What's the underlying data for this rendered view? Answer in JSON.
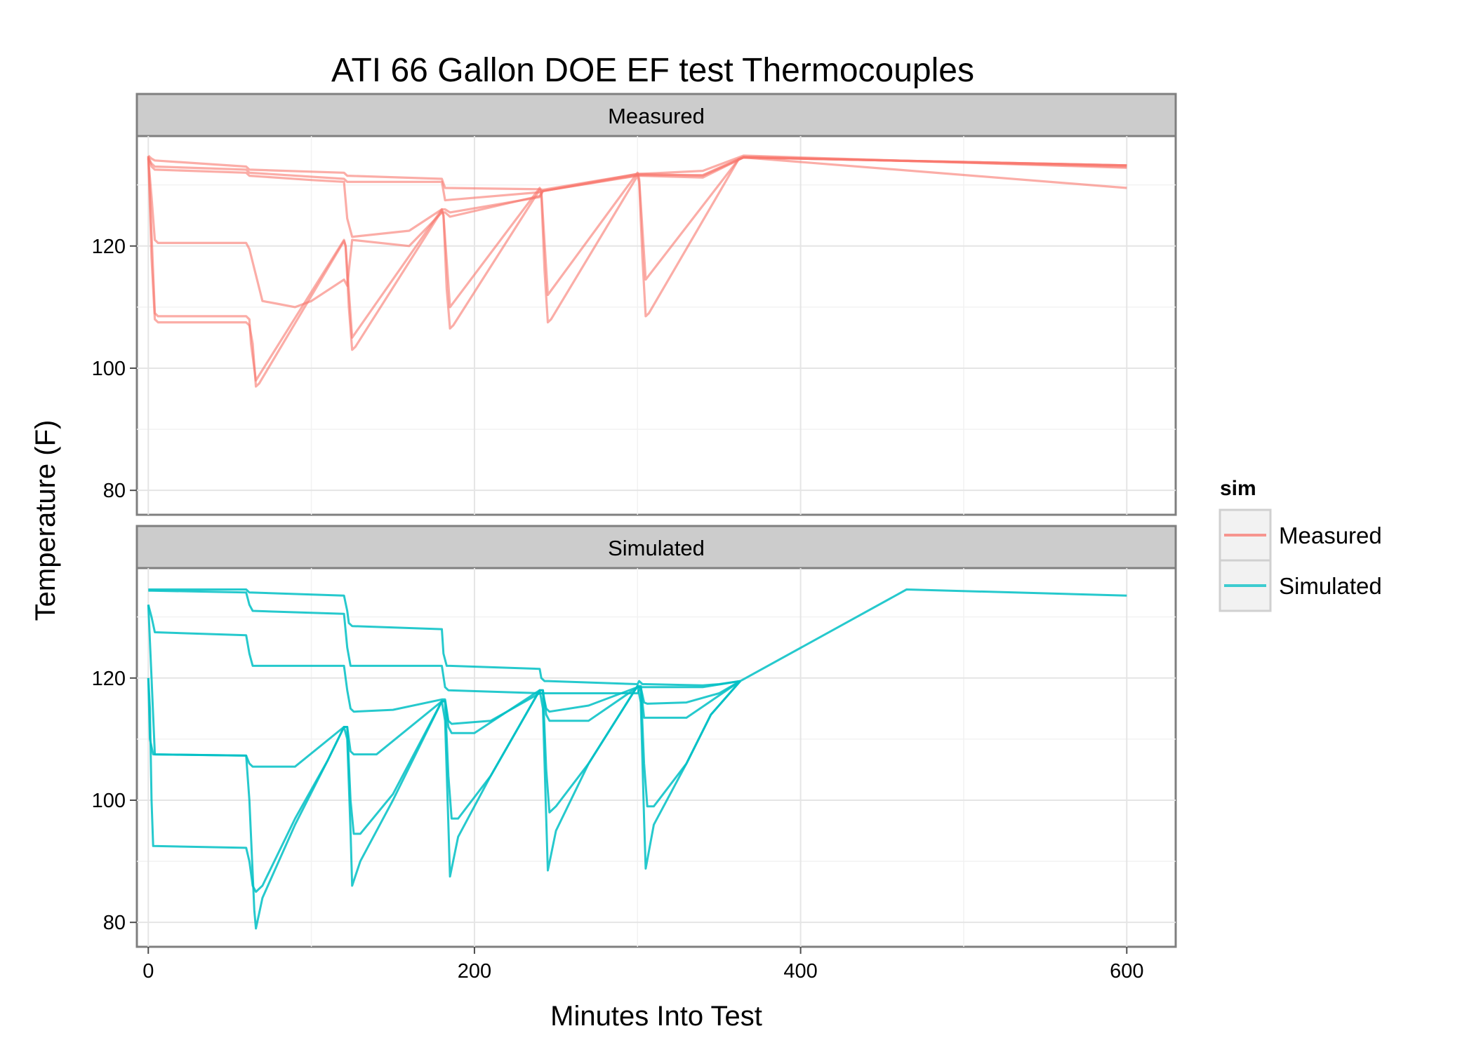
{
  "chart_data": {
    "type": "line",
    "title": "ATI 66 Gallon DOE EF test Thermocouples",
    "xlabel": "Minutes Into Test",
    "ylabel": "Temperature (F)",
    "xlim": [
      -7,
      630
    ],
    "ylim": [
      76,
      138
    ],
    "x_ticks": [
      "0",
      "200",
      "400",
      "600"
    ],
    "y_ticks": [
      "80",
      "100",
      "120"
    ],
    "x_tick_values": [
      0,
      200,
      400,
      600
    ],
    "y_tick_values": [
      80,
      100,
      120
    ],
    "grid": true,
    "colors": {
      "Measured": "#F8766D",
      "Simulated": "#00BFC4"
    },
    "legend": {
      "title": "sim",
      "position": "right",
      "entries": [
        "Measured",
        "Simulated"
      ]
    },
    "panels": [
      {
        "label": "Measured",
        "series": [
          {
            "x": [
              0,
              2,
              4,
              60,
              62,
              120,
              122,
              180,
              182,
              240,
              242,
              300,
              302,
              340,
              365,
              600
            ],
            "y": [
              134.8,
              134.3,
              134,
              133,
              132.5,
              132,
              131.5,
              131,
              129.5,
              129.3,
              129.2,
              131.8,
              131.8,
              132.3,
              134.8,
              132.8
            ]
          },
          {
            "x": [
              0,
              2,
              4,
              60,
              62,
              120,
              122,
              180,
              182,
              240,
              242,
              300,
              302,
              340,
              365,
              600
            ],
            "y": [
              134.5,
              133.5,
              133,
              132.5,
              132,
              131,
              130.5,
              130.5,
              127.5,
              128.8,
              129,
              131.5,
              131.5,
              131.2,
              134.5,
              129.5
            ]
          },
          {
            "x": [
              0,
              2,
              4,
              60,
              62,
              100,
              120,
              122,
              125,
              160,
              180,
              182,
              185,
              240,
              242,
              300,
              302,
              340,
              365,
              600
            ],
            "y": [
              134.5,
              133,
              132.5,
              132,
              131.5,
              130.8,
              130.5,
              124.5,
              121.5,
              122.5,
              126,
              126,
              125.5,
              128,
              129,
              131.8,
              131.8,
              131.5,
              134.5,
              133.2
            ]
          },
          {
            "x": [
              0,
              2,
              4,
              6,
              60,
              62,
              70,
              80,
              90,
              100,
              120,
              122,
              125,
              160,
              180,
              182,
              185,
              240,
              242,
              300,
              302,
              340,
              365,
              600
            ],
            "y": [
              134.3,
              128,
              121,
              120.5,
              120.5,
              119.5,
              111,
              110.5,
              110,
              111,
              114.5,
              113.5,
              121,
              120,
              125.5,
              125.5,
              124.8,
              128.2,
              129,
              131.6,
              131.6,
              131.6,
              134.6,
              133
            ]
          },
          {
            "x": [
              0,
              2,
              4,
              6,
              60,
              62,
              63,
              66,
              120,
              121,
              125,
              180,
              181,
              185,
              240,
              241,
              245,
              300,
              301,
              305,
              362,
              365,
              600
            ],
            "y": [
              134.7,
              122,
              109,
              108.5,
              108.5,
              108,
              104,
              98,
              121,
              120,
              105,
              126,
              125,
              110,
              129.5,
              129,
              112,
              132,
              131,
              114.5,
              134.2,
              134.5,
              133.2
            ]
          },
          {
            "x": [
              0,
              2,
              4,
              6,
              60,
              62,
              64,
              66,
              68,
              120,
              121,
              123,
              125,
              127,
              180,
              181,
              183,
              185,
              187,
              240,
              241,
              243,
              245,
              247,
              300,
              301,
              303,
              305,
              307,
              362,
              365,
              600
            ],
            "y": [
              134.7,
              118,
              108,
              107.5,
              107.5,
              107,
              104,
              97,
              97.5,
              120.8,
              120,
              110,
              103,
              103.5,
              125.8,
              125,
              113,
              106.5,
              107,
              129.2,
              128.5,
              116,
              107.5,
              108,
              131.5,
              130.5,
              118,
              108.5,
              109,
              134.2,
              134.5,
              133.2
            ]
          }
        ]
      },
      {
        "label": "Simulated",
        "series": [
          {
            "x": [
              0,
              2,
              60,
              62,
              120,
              122,
              123,
              125,
              180,
              181,
              183,
              185,
              240,
              241,
              243,
              245,
              300,
              301,
              303,
              305,
              340,
              350,
              363,
              465,
              600
            ],
            "y": [
              134.5,
              134.5,
              134.5,
              134,
              133.5,
              131,
              129,
              128.5,
              128,
              124,
              122,
              122,
              121.5,
              120,
              119.5,
              119.5,
              119,
              119.5,
              119,
              119,
              118.8,
              119,
              119.5,
              134.5,
              133.5
            ]
          },
          {
            "x": [
              0,
              2,
              60,
              62,
              64,
              120,
              122,
              124,
              180,
              182,
              184,
              240,
              242,
              244,
              300,
              302,
              304,
              340,
              363
            ],
            "y": [
              134.3,
              134.3,
              134,
              132,
              131,
              130.5,
              125,
              122,
              122,
              118.5,
              118,
              117.5,
              117.5,
              117.5,
              117.5,
              118.5,
              118.5,
              118.5,
              119.5
            ]
          },
          {
            "x": [
              0,
              2,
              4,
              60,
              62,
              64,
              120,
              122,
              124,
              126,
              150,
              180,
              182,
              184,
              186,
              210,
              240,
              242,
              244,
              246,
              270,
              300,
              302,
              304,
              306,
              330,
              350,
              363
            ],
            "y": [
              132,
              130,
              127.5,
              127,
              124,
              122,
              122,
              118,
              115,
              114.5,
              114.8,
              116.5,
              116.5,
              113,
              112.5,
              113,
              117.5,
              117.5,
              115,
              114.5,
              115.5,
              118.5,
              118.5,
              116,
              115.8,
              116,
              117.5,
              119.5
            ]
          },
          {
            "x": [
              0,
              2,
              4,
              60,
              62,
              64,
              90,
              120,
              122,
              124,
              126,
              140,
              180,
              182,
              184,
              186,
              200,
              240,
              242,
              244,
              246,
              270,
              300,
              302,
              304,
              306,
              330,
              363
            ],
            "y": [
              132,
              120,
              107.5,
              107.3,
              106,
              105.5,
              105.5,
              112,
              112,
              108,
              107.5,
              107.5,
              116.2,
              116.2,
              112,
              111,
              111,
              118,
              118,
              114,
              113,
              113,
              118.5,
              118.5,
              113.5,
              113.5,
              113.5,
              119.5
            ]
          },
          {
            "x": [
              0,
              1,
              2,
              3,
              60,
              62,
              64,
              66,
              70,
              90,
              110,
              120,
              122,
              124,
              126,
              130,
              150,
              180,
              182,
              184,
              186,
              190,
              210,
              240,
              242,
              244,
              246,
              250,
              270,
              300,
              302,
              304,
              306,
              310,
              330,
              345,
              363
            ],
            "y": [
              120,
              115,
              100,
              92.5,
              92.2,
              90,
              86,
              85,
              86,
              97,
              106.5,
              112,
              112,
              100,
              94.5,
              94.5,
              101,
              116.2,
              116.2,
              104,
              97,
              97,
              104,
              118,
              118,
              105,
              98,
              99,
              106,
              118.7,
              118.7,
              106,
              99,
              99,
              106,
              114,
              119.5
            ]
          },
          {
            "x": [
              0,
              1,
              3,
              60,
              62,
              64,
              65,
              66,
              70,
              90,
              110,
              120,
              122,
              124,
              125,
              130,
              150,
              180,
              182,
              184,
              185,
              190,
              210,
              240,
              242,
              244,
              245,
              250,
              270,
              300,
              302,
              304,
              305,
              310,
              330,
              345,
              363
            ],
            "y": [
              120,
              110,
              107.5,
              107.3,
              100,
              88,
              82,
              79,
              84,
              96,
              106.5,
              112,
              110,
              95,
              86,
              90,
              100,
              116.2,
              113,
              96,
              87.5,
              94,
              104,
              118,
              115,
              97,
              88.5,
              95,
              106,
              118.7,
              116,
              97,
              88.8,
              96,
              106,
              114,
              119.5
            ]
          }
        ]
      }
    ]
  }
}
